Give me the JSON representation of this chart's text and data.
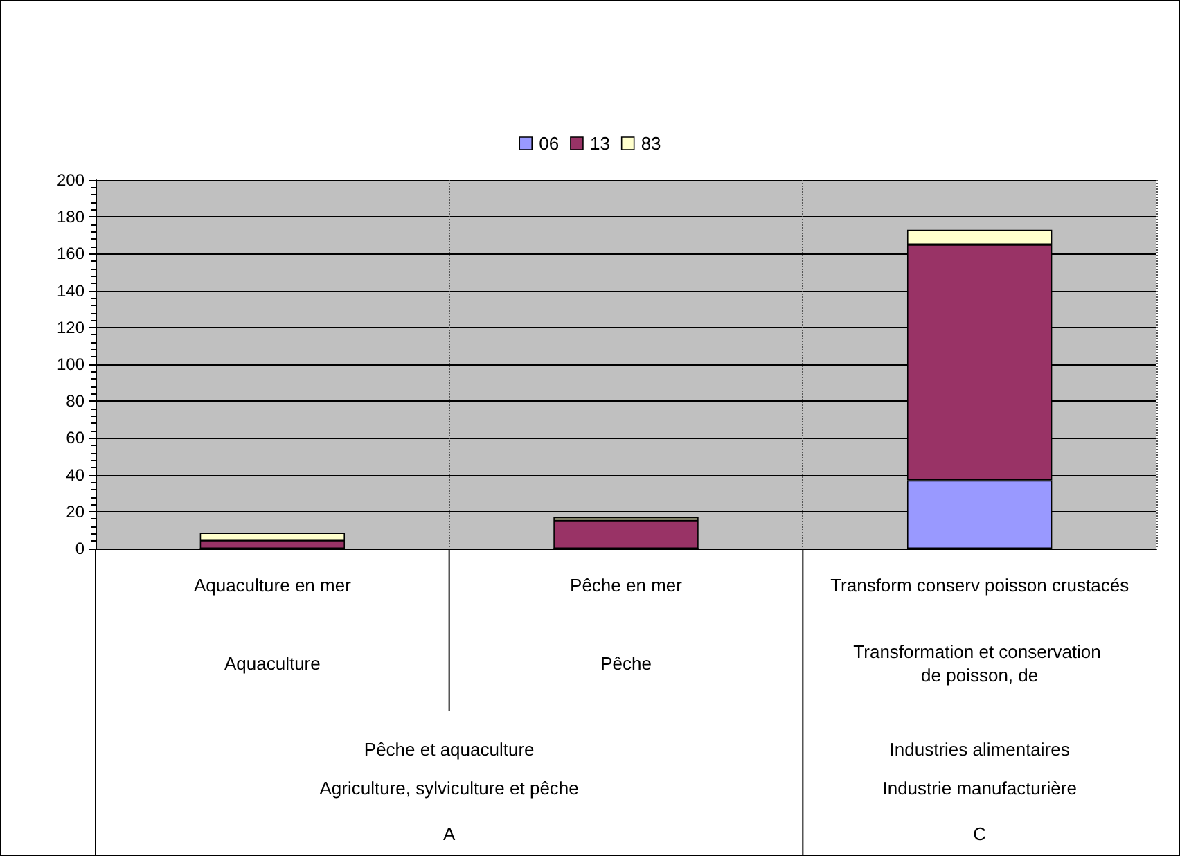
{
  "chart_data": {
    "type": "bar",
    "stacked": true,
    "categories": [
      "Aquaculture en mer",
      "Pêche en mer",
      "Transform conserv poisson crustacés"
    ],
    "series": [
      {
        "name": "06",
        "color": "#9999ff",
        "values": [
          0,
          0,
          37
        ]
      },
      {
        "name": "13",
        "color": "#993366",
        "values": [
          4.5,
          15,
          128
        ]
      },
      {
        "name": "83",
        "color": "#ffffcc",
        "values": [
          4,
          2,
          8
        ]
      }
    ],
    "ylim": [
      0,
      200
    ],
    "yticks": [
      0,
      20,
      40,
      60,
      80,
      100,
      120,
      140,
      160,
      180,
      200
    ],
    "grid": true,
    "legend": "top",
    "annotations": [
      "Aquaculture",
      "Pêche",
      "Transformation et conservation de poisson, de",
      "Pêche et aquaculture",
      "Industries alimentaires",
      "Agriculture, sylviculture et pêche",
      "Industrie manufacturière",
      "A",
      "C"
    ]
  }
}
